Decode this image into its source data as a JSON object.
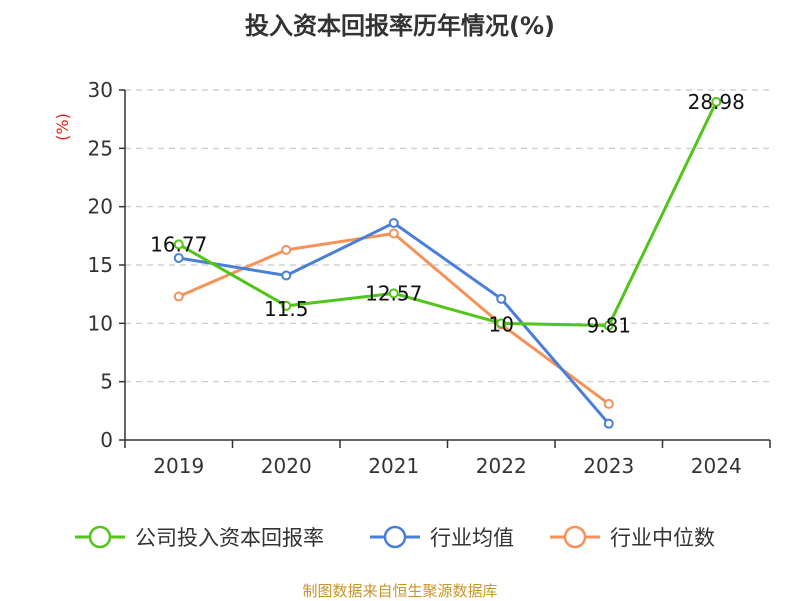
{
  "chart_data": {
    "type": "line",
    "title": "投入资本回报率历年情况(%)",
    "ylabel": "(%)",
    "xlabel": "",
    "categories": [
      "2019",
      "2020",
      "2021",
      "2022",
      "2023",
      "2024"
    ],
    "ylim": [
      0,
      30
    ],
    "yticks": [
      0,
      5,
      10,
      15,
      20,
      25,
      30
    ],
    "grid": true,
    "legend_position": "bottom",
    "series": [
      {
        "name": "公司投入资本回报率",
        "color": "#52c41a",
        "values": [
          16.77,
          11.5,
          12.57,
          10,
          9.81,
          28.98
        ],
        "labels": [
          "16.77",
          "11.5",
          "12.57",
          "10",
          "9.81",
          "28.98"
        ]
      },
      {
        "name": "行业均值",
        "color": "#4a7fd9",
        "values": [
          15.6,
          14.1,
          18.6,
          12.1,
          1.4,
          null
        ]
      },
      {
        "name": "行业中位数",
        "color": "#f5925a",
        "values": [
          12.3,
          16.3,
          17.7,
          9.9,
          3.1,
          null
        ]
      }
    ]
  },
  "footer": {
    "source": "制图数据来自恒生聚源数据库"
  }
}
